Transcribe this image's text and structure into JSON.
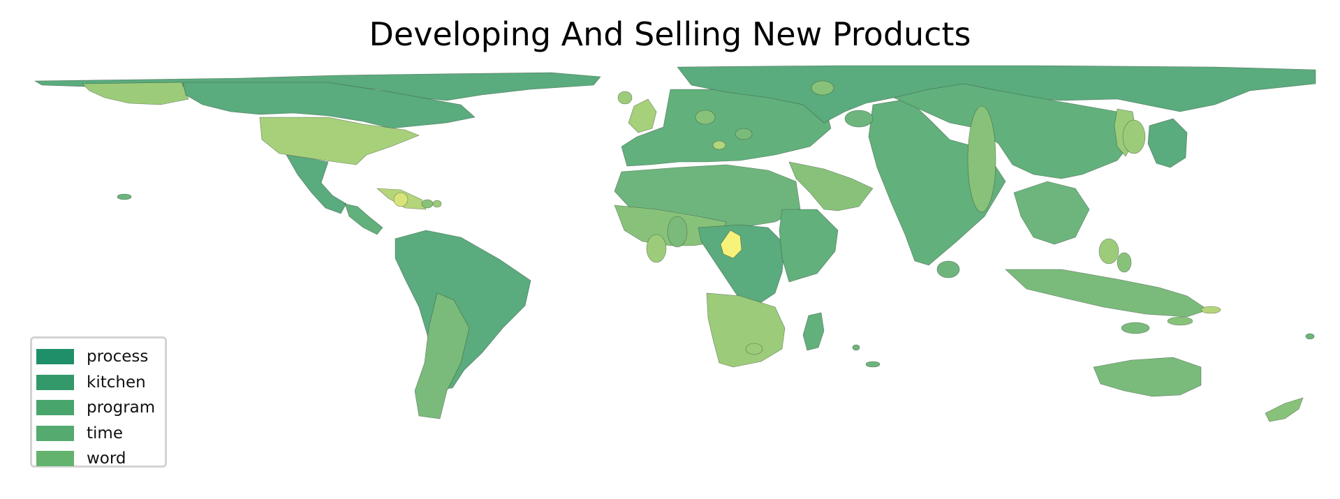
{
  "title": "Developing And Selling New Products",
  "legend": {
    "items": [
      {
        "label": "process",
        "color": "#1f8f69"
      },
      {
        "label": "kitchen",
        "color": "#33996b"
      },
      {
        "label": "program",
        "color": "#48a56c"
      },
      {
        "label": "time",
        "color": "#54aa6f"
      },
      {
        "label": "word",
        "color": "#63b36f"
      }
    ]
  },
  "map": {
    "projection": "equirectangular world map",
    "fill_palette": [
      "#5aab7d",
      "#62b07c",
      "#6db57d",
      "#7abb7b",
      "#88c27a",
      "#9ccc7a",
      "#b5d57a",
      "#d8e37a",
      "#f6f27a"
    ],
    "regions": [
      {
        "region": "Greenland",
        "fill": "#5aab7d"
      },
      {
        "region": "Alaska",
        "fill": "#9ccc7a"
      },
      {
        "region": "Canada",
        "fill": "#5aab7d"
      },
      {
        "region": "United States",
        "fill": "#a6d07a"
      },
      {
        "region": "Mexico",
        "fill": "#5aab7d"
      },
      {
        "region": "Central America",
        "fill": "#62b07c"
      },
      {
        "region": "Caribbean",
        "fill": "#b5d57a"
      },
      {
        "region": "South America",
        "fill": "#5aab7d"
      },
      {
        "region": "Chile and Argentina",
        "fill": "#7abb7b"
      },
      {
        "region": "United Kingdom and Ireland",
        "fill": "#a6d07a"
      },
      {
        "region": "Europe",
        "fill": "#62b07c"
      },
      {
        "region": "Russia",
        "fill": "#5aab7d"
      },
      {
        "region": "Middle East",
        "fill": "#88c27a"
      },
      {
        "region": "India",
        "fill": "#62b07c"
      },
      {
        "region": "China",
        "fill": "#62b07c"
      },
      {
        "region": "Japan",
        "fill": "#5aab7d"
      },
      {
        "region": "Korea",
        "fill": "#9ccc7a"
      },
      {
        "region": "Southeast Asia",
        "fill": "#6db57d"
      },
      {
        "region": "Indonesia",
        "fill": "#7abb7b"
      },
      {
        "region": "North Africa",
        "fill": "#6db57d"
      },
      {
        "region": "West Africa",
        "fill": "#88c27a"
      },
      {
        "region": "Central Africa",
        "fill": "#5aab7d"
      },
      {
        "region": "Cameroon",
        "fill": "#f6f27a"
      },
      {
        "region": "Southern Africa",
        "fill": "#9ccc7a"
      },
      {
        "region": "East Africa",
        "fill": "#62b07c"
      },
      {
        "region": "Madagascar",
        "fill": "#62b07c"
      },
      {
        "region": "Australia",
        "fill": "#7abb7b"
      },
      {
        "region": "New Zealand",
        "fill": "#88c27a"
      }
    ]
  }
}
